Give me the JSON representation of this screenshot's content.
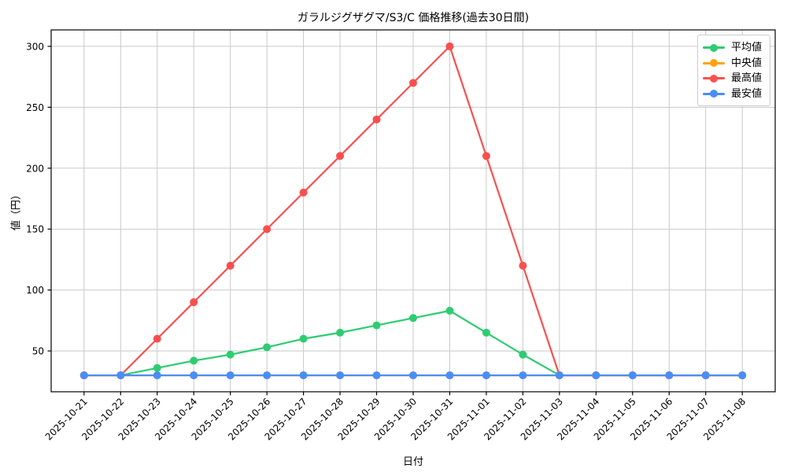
{
  "chart_data": {
    "type": "line",
    "title": "ガラルジグザグマ/S3/C 価格推移(過去30日間)",
    "xlabel": "日付",
    "ylabel": "値（円）",
    "x": [
      "2025-10-21",
      "2025-10-22",
      "2025-10-23",
      "2025-10-24",
      "2025-10-25",
      "2025-10-26",
      "2025-10-27",
      "2025-10-28",
      "2025-10-29",
      "2025-10-30",
      "2025-10-31",
      "2025-11-01",
      "2025-11-02",
      "2025-11-03",
      "2025-11-04",
      "2025-11-05",
      "2025-11-06",
      "2025-11-07",
      "2025-11-08"
    ],
    "series": [
      {
        "name": "平均値",
        "color": "#2ecc71",
        "values": [
          30,
          30,
          36,
          42,
          47,
          53,
          60,
          65,
          71,
          77,
          83,
          65,
          47,
          30,
          30,
          30,
          30,
          30,
          30
        ]
      },
      {
        "name": "中央値",
        "color": "#ffa412",
        "values": [
          30,
          30,
          30,
          30,
          30,
          30,
          30,
          30,
          30,
          30,
          30,
          30,
          30,
          30,
          30,
          30,
          30,
          30,
          30
        ]
      },
      {
        "name": "最高値",
        "color": "#fa4f4f",
        "values": [
          30,
          30,
          60,
          90,
          120,
          150,
          180,
          210,
          240,
          270,
          300,
          210,
          120,
          30,
          30,
          30,
          30,
          30,
          30
        ]
      },
      {
        "name": "最安値",
        "color": "#4a8df8",
        "values": [
          30,
          30,
          30,
          30,
          30,
          30,
          30,
          30,
          30,
          30,
          30,
          30,
          30,
          30,
          30,
          30,
          30,
          30,
          30
        ]
      }
    ],
    "yticks": [
      50,
      100,
      150,
      200,
      250,
      300
    ],
    "ylim": [
      16.5,
      313.5
    ],
    "x_tick_rotation": -45,
    "grid": true,
    "grid_color": "#c9c9c9",
    "frame_color": "#000000",
    "background": "#ffffff",
    "legend_position": "upper right"
  }
}
